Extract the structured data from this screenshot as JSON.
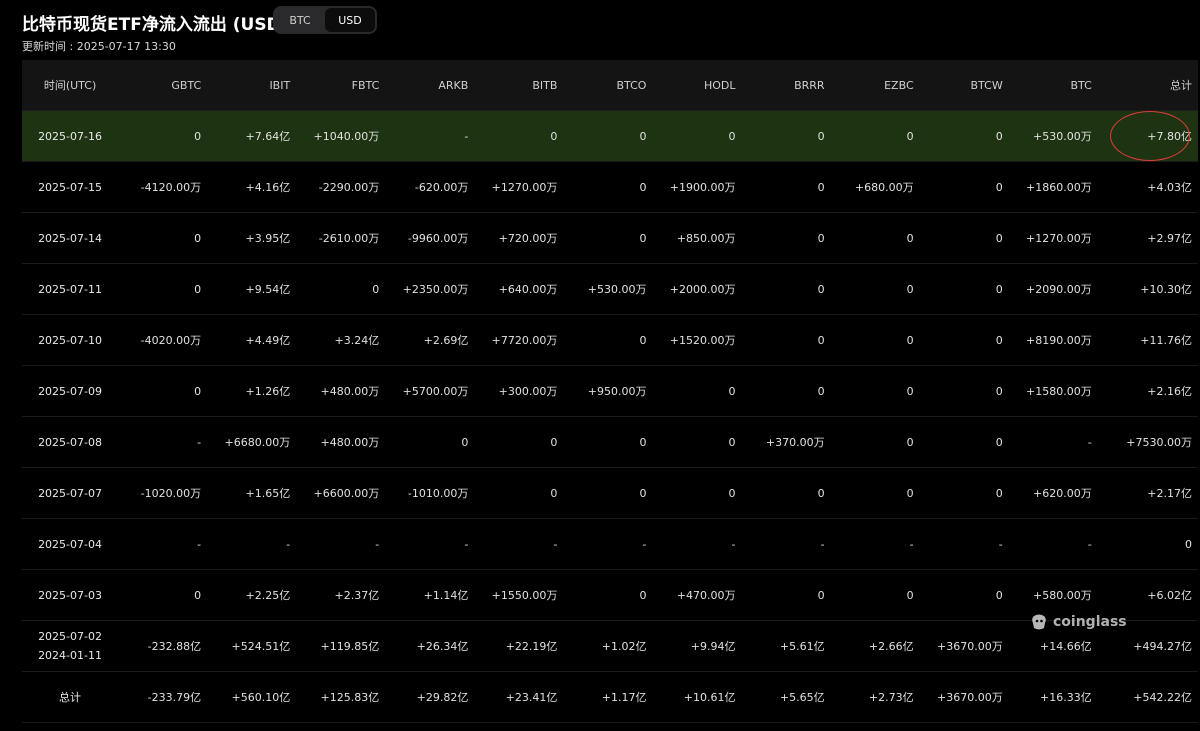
{
  "title": "比特币现货ETF净流入流出 (USD)",
  "update_time": "更新时间 : 2025-07-17 13:30",
  "toggle": [
    "BTC",
    "USD"
  ],
  "toggle_active": "USD",
  "watermark": "coinglass",
  "columns": [
    "时间(UTC)",
    "GBTC",
    "IBIT",
    "FBTC",
    "ARKB",
    "BITB",
    "BTCO",
    "HODL",
    "BRRR",
    "EZBC",
    "BTCW",
    "BTC",
    "总计"
  ],
  "rows": [
    [
      "2025-07-16",
      "0",
      "+7.64亿",
      "+1040.00万",
      "-",
      "0",
      "0",
      "0",
      "0",
      "0",
      "0",
      "+530.00万",
      "+7.80亿"
    ],
    [
      "2025-07-15",
      "-4120.00万",
      "+4.16亿",
      "-2290.00万",
      "-620.00万",
      "+1270.00万",
      "0",
      "+1900.00万",
      "0",
      "+680.00万",
      "0",
      "+1860.00万",
      "+4.03亿"
    ],
    [
      "2025-07-14",
      "0",
      "+3.95亿",
      "-2610.00万",
      "-9960.00万",
      "+720.00万",
      "0",
      "+850.00万",
      "0",
      "0",
      "0",
      "+1270.00万",
      "+2.97亿"
    ],
    [
      "2025-07-11",
      "0",
      "+9.54亿",
      "0",
      "+2350.00万",
      "+640.00万",
      "+530.00万",
      "+2000.00万",
      "0",
      "0",
      "0",
      "+2090.00万",
      "+10.30亿"
    ],
    [
      "2025-07-10",
      "-4020.00万",
      "+4.49亿",
      "+3.24亿",
      "+2.69亿",
      "+7720.00万",
      "0",
      "+1520.00万",
      "0",
      "0",
      "0",
      "+8190.00万",
      "+11.76亿"
    ],
    [
      "2025-07-09",
      "0",
      "+1.26亿",
      "+480.00万",
      "+5700.00万",
      "+300.00万",
      "+950.00万",
      "0",
      "0",
      "0",
      "0",
      "+1580.00万",
      "+2.16亿"
    ],
    [
      "2025-07-08",
      "-",
      "+6680.00万",
      "+480.00万",
      "0",
      "0",
      "0",
      "0",
      "+370.00万",
      "0",
      "0",
      "-",
      "+7530.00万"
    ],
    [
      "2025-07-07",
      "-1020.00万",
      "+1.65亿",
      "+6600.00万",
      "-1010.00万",
      "0",
      "0",
      "0",
      "0",
      "0",
      "0",
      "+620.00万",
      "+2.17亿"
    ],
    [
      "2025-07-04",
      "-",
      "-",
      "-",
      "-",
      "-",
      "-",
      "-",
      "-",
      "-",
      "-",
      "-",
      "0"
    ],
    [
      "2025-07-03",
      "0",
      "+2.25亿",
      "+2.37亿",
      "+1.14亿",
      "+1550.00万",
      "0",
      "+470.00万",
      "0",
      "0",
      "0",
      "+580.00万",
      "+6.02亿"
    ],
    [
      "2025-07-02\n2024-01-11",
      "-232.88亿",
      "+524.51亿",
      "+119.85亿",
      "+26.34亿",
      "+22.19亿",
      "+1.02亿",
      "+9.94亿",
      "+5.61亿",
      "+2.66亿",
      "+3670.00万",
      "+14.66亿",
      "+494.27亿"
    ],
    [
      "总计",
      "-233.79亿",
      "+560.10亿",
      "+125.83亿",
      "+29.82亿",
      "+23.41亿",
      "+1.17亿",
      "+10.61亿",
      "+5.65亿",
      "+2.73亿",
      "+3670.00万",
      "+16.33亿",
      "+542.22亿"
    ]
  ],
  "highlight_row": 0,
  "colors": {
    "positive": "#2ebd85",
    "negative": "#f6465d",
    "highlight_bg": "#1e3311",
    "header_bg": "#141414",
    "annotation_circle": "#e23b3b"
  },
  "icons": {
    "watermark_logo": "coinglass-logo-icon"
  }
}
